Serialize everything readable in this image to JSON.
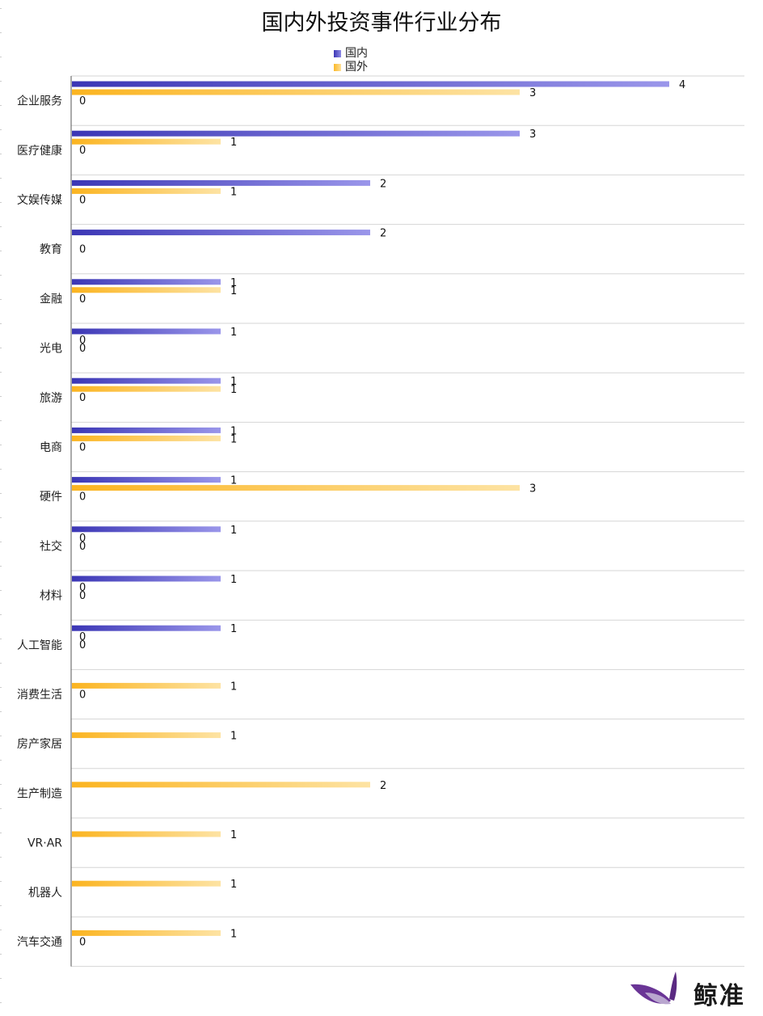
{
  "chart_data": {
    "type": "bar",
    "orientation": "horizontal",
    "title": "国内外投资事件行业分布",
    "xlabel": "",
    "ylabel": "",
    "xlim": [
      0,
      4.5
    ],
    "grid": true,
    "legend_position": "top-center",
    "categories": [
      "企业服务",
      "医疗健康",
      "文娱传媒",
      "教育",
      "金融",
      "光电",
      "旅游",
      "电商",
      "硬件",
      "社交",
      "材料",
      "人工智能",
      "消费生活",
      "房产家居",
      "生产制造",
      "VR·AR",
      "机器人",
      "汽车交通"
    ],
    "series": [
      {
        "name": "国内",
        "color": "#4b44c4",
        "values": [
          4,
          3,
          2,
          2,
          1,
          1,
          1,
          1,
          1,
          1,
          1,
          1,
          null,
          null,
          null,
          null,
          null,
          null
        ]
      },
      {
        "name": "国外",
        "color": "#fbb928",
        "values": [
          3,
          1,
          1,
          null,
          1,
          0,
          1,
          1,
          3,
          0,
          0,
          0,
          1,
          1,
          2,
          1,
          1,
          1
        ]
      },
      {
        "name": "",
        "color": "#000000",
        "values": [
          0,
          0,
          0,
          0,
          0,
          0,
          0,
          0,
          0,
          0,
          0,
          0,
          0,
          null,
          null,
          null,
          null,
          0
        ]
      }
    ]
  },
  "legend": [
    {
      "label": "国内",
      "color": "#4b44c4"
    },
    {
      "label": "国外",
      "color": "#fbb928"
    }
  ],
  "brand": {
    "name": "鲸准",
    "color": "#5b2a82"
  }
}
